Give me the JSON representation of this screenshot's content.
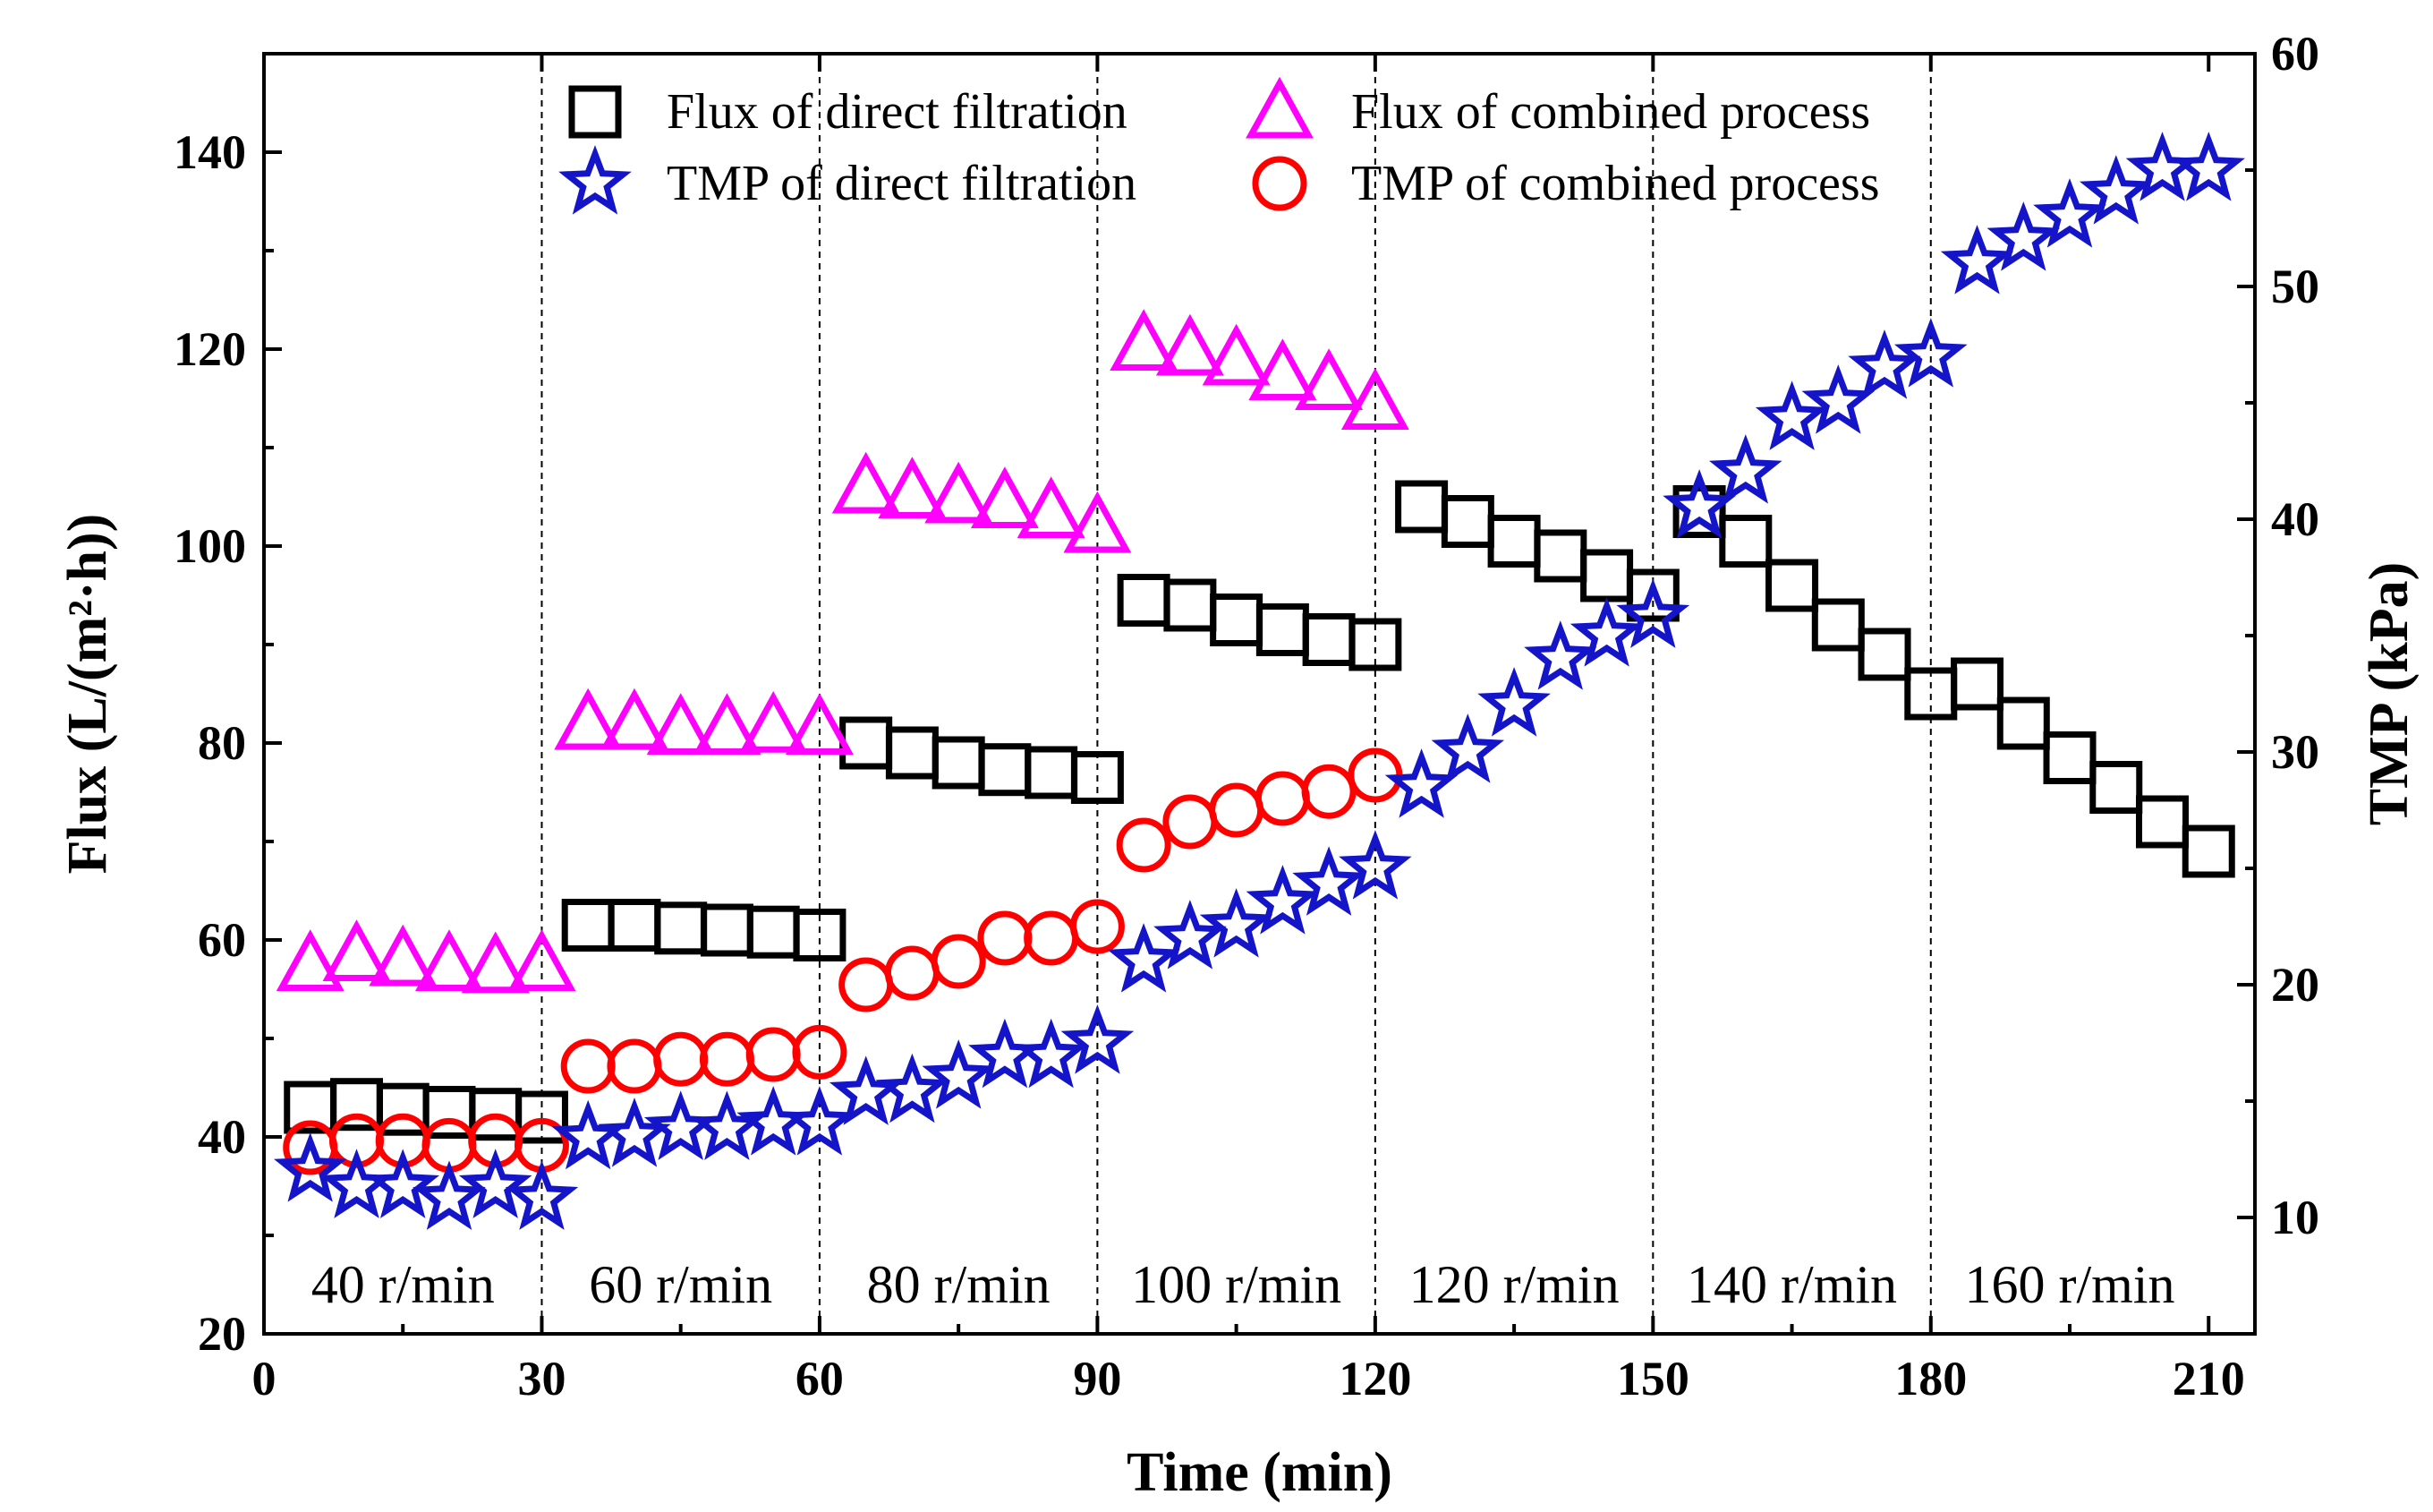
{
  "chart_data": {
    "type": "scatter",
    "title": "",
    "xlabel": "Time (min)",
    "ylabel_left": "Flux (L/(m²·h))",
    "ylabel_right": "TMP (kPa)",
    "xlim": [
      0,
      215
    ],
    "ylim_left": [
      20,
      150
    ],
    "ylim_right": [
      5,
      60
    ],
    "xticks": [
      "0",
      "30",
      "60",
      "90",
      "120",
      "150",
      "180",
      "210"
    ],
    "yticks_left": [
      "20",
      "40",
      "60",
      "80",
      "100",
      "120",
      "140"
    ],
    "yticks_right": [
      "10",
      "20",
      "30",
      "40",
      "50",
      "60"
    ],
    "dividers": [
      30,
      60,
      90,
      120,
      150,
      180
    ],
    "regions": [
      {
        "label": "40 r/min",
        "x": 15
      },
      {
        "label": "60 r/min",
        "x": 45
      },
      {
        "label": "80 r/min",
        "x": 75
      },
      {
        "label": "100 r/min",
        "x": 105
      },
      {
        "label": "120 r/min",
        "x": 135
      },
      {
        "label": "140 r/min",
        "x": 165
      },
      {
        "label": "160 r/min",
        "x": 195
      }
    ],
    "series": [
      {
        "name": "Flux of direct filtration",
        "axis": "left",
        "marker": "square",
        "color": "#000000",
        "x": [
          5,
          10,
          15,
          20,
          25,
          30,
          35,
          40,
          45,
          50,
          55,
          60,
          65,
          70,
          75,
          80,
          85,
          90,
          95,
          100,
          105,
          110,
          115,
          120,
          125,
          130,
          135,
          140,
          145,
          150,
          155,
          160,
          165,
          170,
          175,
          180,
          185,
          190,
          195,
          200,
          205,
          210
        ],
        "y": [
          43,
          43.3,
          42.8,
          42.5,
          42.3,
          42,
          61.5,
          61.5,
          61.2,
          61,
          60.8,
          60.5,
          80,
          79,
          78,
          77.3,
          77,
          76.5,
          94.5,
          94,
          92.5,
          91.5,
          90.5,
          90,
          104,
          102.5,
          100.5,
          99,
          97,
          95,
          103.5,
          100.5,
          96,
          92,
          89,
          85,
          86,
          82,
          78.5,
          75.5,
          72,
          69
        ]
      },
      {
        "name": "Flux of combined process",
        "axis": "left",
        "marker": "triangle",
        "color": "#ff00ff",
        "x": [
          5,
          10,
          15,
          20,
          25,
          30,
          35,
          40,
          45,
          50,
          55,
          60,
          65,
          70,
          75,
          80,
          85,
          90,
          95,
          100,
          105,
          110,
          115,
          120
        ],
        "y": [
          57.5,
          58.5,
          58,
          57.5,
          57.3,
          57.5,
          82,
          82,
          81.5,
          81.5,
          81.7,
          81.5,
          106,
          105.5,
          105,
          104.5,
          103.5,
          102,
          120.5,
          120,
          119,
          117.5,
          116.5,
          114.5
        ]
      },
      {
        "name": "TMP of direct filtration",
        "axis": "right",
        "marker": "star",
        "color": "#1414c8",
        "x": [
          5,
          10,
          15,
          20,
          25,
          30,
          35,
          40,
          45,
          50,
          55,
          60,
          65,
          70,
          75,
          80,
          85,
          90,
          95,
          100,
          105,
          110,
          115,
          120,
          125,
          130,
          135,
          140,
          145,
          150,
          155,
          160,
          165,
          170,
          175,
          180,
          185,
          190,
          195,
          200,
          205,
          210
        ],
        "y": [
          12,
          11.3,
          11.3,
          10.8,
          11.3,
          10.8,
          13.4,
          13.5,
          13.8,
          13.8,
          14,
          14,
          15.3,
          15.4,
          16,
          16.9,
          16.9,
          17.5,
          21,
          22,
          22.5,
          23.5,
          24.3,
          25,
          28.5,
          30,
          32,
          34,
          35,
          35.8,
          40.5,
          42,
          44.3,
          45,
          46.5,
          47,
          51,
          52,
          53,
          54,
          55,
          55
        ]
      },
      {
        "name": "TMP of combined process",
        "axis": "right",
        "marker": "circle",
        "color": "#ff0000",
        "x": [
          5,
          10,
          15,
          20,
          25,
          30,
          35,
          40,
          45,
          50,
          55,
          60,
          65,
          70,
          75,
          80,
          85,
          90,
          95,
          100,
          105,
          110,
          115,
          120
        ],
        "y": [
          13,
          13.3,
          13.3,
          13.1,
          13.3,
          13.1,
          16.5,
          16.5,
          16.8,
          16.8,
          17,
          17.1,
          20,
          20.5,
          21,
          22,
          22,
          22.5,
          26,
          27,
          27.5,
          28,
          28.3,
          29
        ]
      }
    ],
    "legend": {
      "placement": "top-center",
      "columns": 2
    }
  }
}
